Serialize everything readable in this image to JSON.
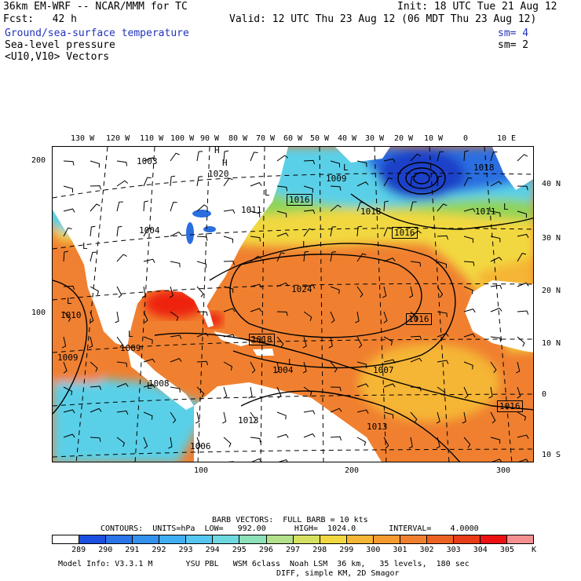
{
  "header": {
    "model_line": "36km EM-WRF -- NCAR/MMM for TC",
    "init": "Init: 18 UTC Tue 21 Aug 12",
    "fcst": "Fcst:   42 h",
    "valid": "Valid: 12 UTC Thu 23 Aug 12 (06 MDT Thu 23 Aug 12)",
    "field1": "Ground/sea-surface temperature",
    "field1_sm": "sm= 4",
    "field2": "Sea-level pressure",
    "field2_sm": "sm= 2",
    "field3": "<U10,V10> Vectors"
  },
  "map": {
    "lon_labels": [
      "130 W",
      "120 W",
      "110 W",
      "100 W",
      "90 W",
      "80 W",
      "70 W",
      "60 W",
      "50 W",
      "40 W",
      "30 W",
      "20 W",
      "10 W",
      "0",
      "10 E"
    ],
    "lat_labels": [
      "40 N",
      "30 N",
      "20 N",
      "10 N",
      "0",
      "10 S"
    ],
    "grid_left_labels": [
      "200",
      "100"
    ],
    "grid_bottom_labels": [
      "100",
      "200",
      "300"
    ],
    "pressure_labels": [
      "1003",
      "1020",
      "1011",
      "1016",
      "1009",
      "1018",
      "1016",
      "1018",
      "1011",
      "1004",
      "1024",
      "1010",
      "1016",
      "1018",
      "1009",
      "1009",
      "1008",
      "1004",
      "1007",
      "1013",
      "1013",
      "1006",
      "1016"
    ],
    "center_labels": [
      "H",
      "L",
      "H",
      "L",
      "L",
      "L",
      "L",
      "L",
      "L",
      "L",
      "L",
      "L"
    ],
    "colors": {
      "land": "#ffffff",
      "sst_warm": "#f08030",
      "sst_hot": "#ee2211",
      "sst_mid": "#f5b535",
      "sst_yellow": "#f2d840",
      "sst_green": "#8fd45a",
      "sst_cyan": "#5ad0e8",
      "sst_blue": "#2a6ee0",
      "sst_deep": "#1a3fc8"
    }
  },
  "footer": {
    "barb_line": "BARB VECTORS:  FULL BARB = 10 kts",
    "contours_line": "CONTOURS:  UNITS=hPa  LOW=   992.00      HIGH=  1024.0       INTERVAL=    4.0000",
    "colorbar_labels": [
      "289",
      "290",
      "291",
      "292",
      "293",
      "294",
      "295",
      "296",
      "297",
      "298",
      "299",
      "300",
      "301",
      "302",
      "303",
      "304",
      "305",
      "K"
    ],
    "colorbar_colors": [
      "#ffffff",
      "#1c4fe0",
      "#2a74e8",
      "#3591ee",
      "#42aef2",
      "#55c6f0",
      "#6ed8e0",
      "#8ee0b8",
      "#b3e08a",
      "#d6e060",
      "#f2d840",
      "#f5b535",
      "#f59a30",
      "#f08030",
      "#ec6222",
      "#e83c18",
      "#ee1111",
      "#f49090"
    ],
    "model_info": "Model Info: V3.3.1 M       YSU PBL   WSM 6class  Noah LSM  36 km,   35 levels,  180 sec",
    "diff_line": "DIFF, simple KM, 2D Smagor"
  }
}
